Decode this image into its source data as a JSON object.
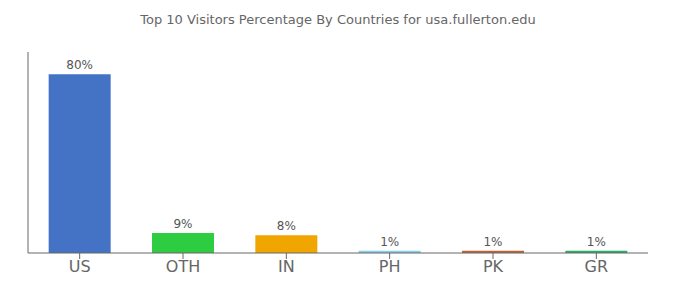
{
  "chart_data": {
    "type": "bar",
    "title": "Top 10 Visitors Percentage By Countries for usa.fullerton.edu",
    "categories": [
      "US",
      "OTH",
      "IN",
      "PH",
      "PK",
      "GR"
    ],
    "values": [
      80,
      9,
      8,
      1,
      1,
      1
    ],
    "value_labels": [
      "80%",
      "9%",
      "8%",
      "1%",
      "1%",
      "1%"
    ],
    "colors": [
      "#4472c4",
      "#2ecc40",
      "#f0a500",
      "#87ceeb",
      "#c06030",
      "#27ae60"
    ],
    "ylim": [
      0,
      90
    ],
    "data_labels": true,
    "tick_labels": "x",
    "grid": false
  }
}
